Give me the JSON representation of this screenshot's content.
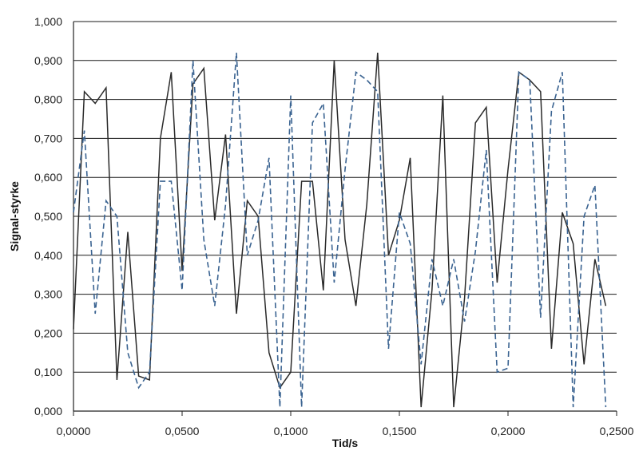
{
  "chart_data": {
    "type": "line",
    "title": "",
    "xlabel": "Tid/s",
    "ylabel": "Signal-styrke",
    "xlim": [
      0,
      0.25
    ],
    "ylim": [
      0,
      1
    ],
    "grid": "horizontal",
    "x_tick_labels": [
      "0,0000",
      "0,0500",
      "0,1000",
      "0,1500",
      "0,2000",
      "0,2500"
    ],
    "y_tick_labels": [
      "0,000",
      "0,100",
      "0,200",
      "0,300",
      "0,400",
      "0,500",
      "0,600",
      "0,700",
      "0,800",
      "0,900",
      "1,000"
    ],
    "x": [
      0.0,
      0.005,
      0.01,
      0.015,
      0.02,
      0.025,
      0.03,
      0.035,
      0.04,
      0.045,
      0.05,
      0.055,
      0.06,
      0.065,
      0.07,
      0.075,
      0.08,
      0.085,
      0.09,
      0.095,
      0.1,
      0.105,
      0.11,
      0.115,
      0.12,
      0.125,
      0.13,
      0.135,
      0.14,
      0.145,
      0.15,
      0.155,
      0.16,
      0.165,
      0.17,
      0.175,
      0.18,
      0.185,
      0.19,
      0.195,
      0.2,
      0.205,
      0.21,
      0.215,
      0.22,
      0.225,
      0.23,
      0.235,
      0.24,
      0.245
    ],
    "series": [
      {
        "style": "solid",
        "color": "#2a2a2a",
        "values": [
          0.21,
          0.82,
          0.79,
          0.83,
          0.08,
          0.46,
          0.09,
          0.08,
          0.7,
          0.87,
          0.36,
          0.84,
          0.88,
          0.49,
          0.71,
          0.25,
          0.54,
          0.5,
          0.15,
          0.06,
          0.1,
          0.59,
          0.59,
          0.31,
          0.9,
          0.44,
          0.27,
          0.53,
          0.92,
          0.4,
          0.49,
          0.65,
          0.01,
          0.31,
          0.81,
          0.01,
          0.29,
          0.74,
          0.78,
          0.33,
          0.62,
          0.87,
          0.85,
          0.82,
          0.16,
          0.51,
          0.43,
          0.12,
          0.39,
          0.27
        ]
      },
      {
        "style": "dashed",
        "color": "#3a6391",
        "values": [
          0.51,
          0.72,
          0.25,
          0.54,
          0.5,
          0.15,
          0.06,
          0.1,
          0.59,
          0.59,
          0.31,
          0.9,
          0.44,
          0.27,
          0.53,
          0.92,
          0.4,
          0.49,
          0.65,
          0.01,
          0.81,
          0.01,
          0.74,
          0.79,
          0.33,
          0.62,
          0.87,
          0.85,
          0.82,
          0.16,
          0.51,
          0.43,
          0.12,
          0.39,
          0.27,
          0.39,
          0.23,
          0.41,
          0.67,
          0.1,
          0.11,
          0.87,
          0.85,
          0.24,
          0.77,
          0.87,
          0.01,
          0.5,
          0.58,
          0.01
        ]
      }
    ]
  }
}
